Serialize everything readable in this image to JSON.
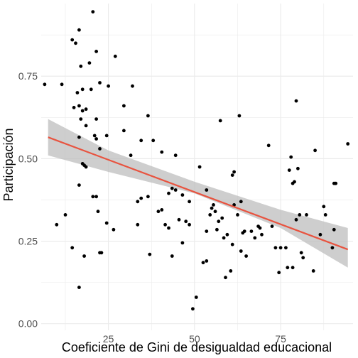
{
  "chart_data": {
    "type": "scatter",
    "title": "",
    "xlabel": "Coeficiente de Gini de desigualdad educacional",
    "ylabel": "Participación",
    "xlim": [
      5.5,
      96
    ],
    "ylim": [
      -0.02,
      0.97
    ],
    "x_ticks": [
      25,
      50,
      75
    ],
    "x_tick_labels": [
      "25",
      "50",
      "75"
    ],
    "y_ticks": [
      0,
      0.25,
      0.5,
      0.75
    ],
    "y_tick_labels": [
      "0.00",
      "0.25",
      "0.50",
      "0.75"
    ],
    "grid": true,
    "legend": "none",
    "colors": {
      "points": "#000000",
      "trend_line": "#e8533f",
      "confidence_band": "#bebebe",
      "grid": "#ebebeb"
    },
    "points": [
      [
        6.5,
        0.725
      ],
      [
        11.5,
        0.725
      ],
      [
        14.5,
        0.86
      ],
      [
        15.5,
        0.85
      ],
      [
        16.5,
        0.89
      ],
      [
        20.5,
        0.945
      ],
      [
        21.5,
        0.825
      ],
      [
        19.5,
        0.79
      ],
      [
        17.0,
        0.78
      ],
      [
        27.0,
        0.81
      ],
      [
        15.0,
        0.655
      ],
      [
        16.0,
        0.7
      ],
      [
        17.5,
        0.71
      ],
      [
        17.5,
        0.645
      ],
      [
        18.5,
        0.65
      ],
      [
        20.0,
        0.71
      ],
      [
        22.5,
        0.73
      ],
      [
        25.0,
        0.72
      ],
      [
        32.0,
        0.72
      ],
      [
        16.5,
        0.66
      ],
      [
        21.5,
        0.62
      ],
      [
        17.0,
        0.62
      ],
      [
        18.5,
        0.6
      ],
      [
        29.5,
        0.66
      ],
      [
        16.5,
        0.565
      ],
      [
        21.0,
        0.57
      ],
      [
        21.5,
        0.56
      ],
      [
        24.5,
        0.57
      ],
      [
        29.5,
        0.585
      ],
      [
        22.5,
        0.53
      ],
      [
        36.5,
        0.63
      ],
      [
        38.0,
        0.555
      ],
      [
        34.5,
        0.555
      ],
      [
        31.5,
        0.51
      ],
      [
        40.5,
        0.52
      ],
      [
        44.5,
        0.51
      ],
      [
        17.5,
        0.485
      ],
      [
        18.0,
        0.48
      ],
      [
        18.5,
        0.475
      ],
      [
        16.5,
        0.42
      ],
      [
        20.5,
        0.385
      ],
      [
        21.5,
        0.385
      ],
      [
        22.0,
        0.34
      ],
      [
        24.5,
        0.305
      ],
      [
        26.5,
        0.285
      ],
      [
        33.5,
        0.37
      ],
      [
        34.5,
        0.38
      ],
      [
        36.5,
        0.385
      ],
      [
        39.5,
        0.34
      ],
      [
        40.5,
        0.345
      ],
      [
        42.5,
        0.395
      ],
      [
        43.5,
        0.41
      ],
      [
        44.5,
        0.405
      ],
      [
        46.5,
        0.39
      ],
      [
        48.5,
        0.37
      ],
      [
        51.5,
        0.475
      ],
      [
        53.5,
        0.405
      ],
      [
        10.0,
        0.3
      ],
      [
        12.5,
        0.33
      ],
      [
        14.5,
        0.23
      ],
      [
        16.5,
        0.11
      ],
      [
        18.0,
        0.205
      ],
      [
        23.0,
        0.215
      ],
      [
        33.5,
        0.3
      ],
      [
        37.0,
        0.21
      ],
      [
        41.5,
        0.3
      ],
      [
        42.5,
        0.29
      ],
      [
        43.5,
        0.205
      ],
      [
        45.5,
        0.315
      ],
      [
        46.5,
        0.245
      ],
      [
        47.5,
        0.31
      ],
      [
        48.5,
        0.3
      ],
      [
        52.5,
        0.185
      ],
      [
        53.5,
        0.19
      ],
      [
        53.5,
        0.28
      ],
      [
        54.5,
        0.33
      ],
      [
        55.0,
        0.35
      ],
      [
        55.5,
        0.36
      ],
      [
        56.0,
        0.34
      ],
      [
        56.5,
        0.285
      ],
      [
        57.0,
        0.31
      ],
      [
        57.5,
        0.615
      ],
      [
        58.0,
        0.32
      ],
      [
        58.5,
        0.26
      ],
      [
        59.5,
        0.27
      ],
      [
        59.0,
        0.14
      ],
      [
        60.5,
        0.16
      ],
      [
        61.0,
        0.24
      ],
      [
        61.0,
        0.45
      ],
      [
        61.5,
        0.46
      ],
      [
        63.0,
        0.63
      ],
      [
        61.5,
        0.36
      ],
      [
        62.5,
        0.33
      ],
      [
        63.5,
        0.37
      ],
      [
        63.5,
        0.22
      ],
      [
        64.0,
        0.275
      ],
      [
        64.5,
        0.28
      ],
      [
        65.0,
        0.205
      ],
      [
        66.5,
        0.28
      ],
      [
        67.5,
        0.26
      ],
      [
        68.5,
        0.295
      ],
      [
        69.0,
        0.29
      ],
      [
        69.5,
        0.27
      ],
      [
        71.5,
        0.54
      ],
      [
        72.5,
        0.295
      ],
      [
        73.5,
        0.23
      ],
      [
        74.5,
        0.155
      ],
      [
        75.0,
        0.23
      ],
      [
        76.5,
        0.23
      ],
      [
        77.0,
        0.17
      ],
      [
        77.5,
        0.465
      ],
      [
        78.0,
        0.505
      ],
      [
        78.5,
        0.425
      ],
      [
        79.0,
        0.43
      ],
      [
        79.5,
        0.675
      ],
      [
        79.5,
        0.315
      ],
      [
        80.0,
        0.47
      ],
      [
        80.5,
        0.33
      ],
      [
        81.0,
        0.215
      ],
      [
        81.5,
        0.2
      ],
      [
        82.5,
        0.33
      ],
      [
        78.5,
        0.17
      ],
      [
        84.5,
        0.16
      ],
      [
        85.0,
        0.525
      ],
      [
        86.5,
        0.27
      ],
      [
        87.5,
        0.355
      ],
      [
        88.0,
        0.33
      ],
      [
        90.0,
        0.23
      ],
      [
        90.5,
        0.285
      ],
      [
        90.5,
        0.425
      ],
      [
        91.0,
        0.425
      ],
      [
        94.5,
        0.545
      ],
      [
        49.5,
        0.045
      ],
      [
        50.5,
        0.08
      ],
      [
        22.5,
        0.215
      ]
    ],
    "trend_line": {
      "x": [
        7.5,
        94.5
      ],
      "y": [
        0.565,
        0.225
      ]
    },
    "confidence_band": {
      "x": [
        7.5,
        25,
        50,
        75,
        94.5
      ],
      "upper": [
        0.62,
        0.525,
        0.43,
        0.345,
        0.29
      ],
      "lower": [
        0.51,
        0.46,
        0.395,
        0.29,
        0.17
      ]
    }
  }
}
